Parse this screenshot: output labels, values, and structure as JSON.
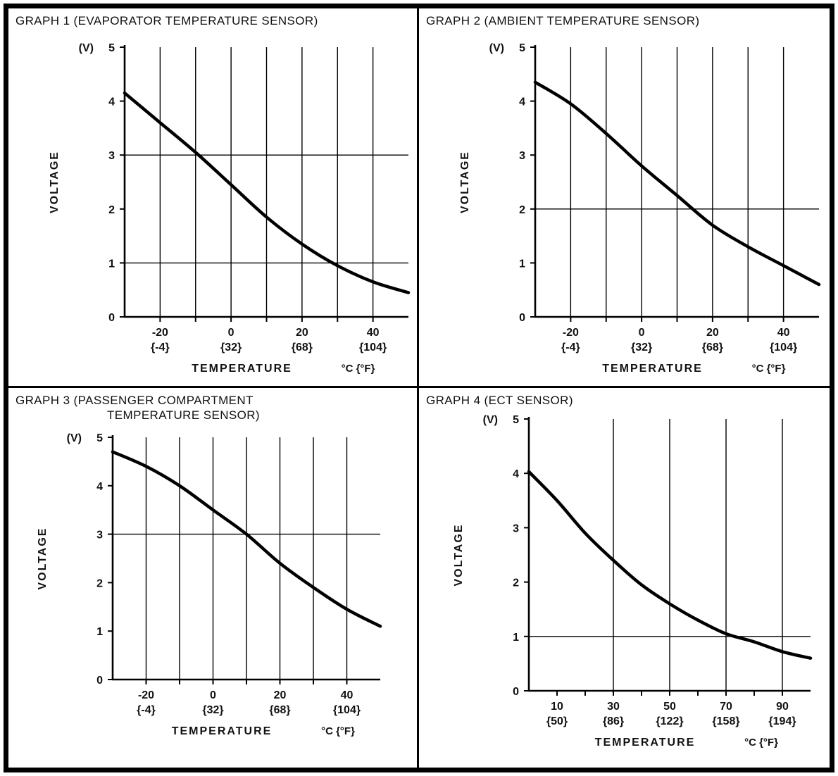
{
  "page": {
    "background": "#ffffff",
    "border_color": "#000000"
  },
  "chart_data": [
    {
      "type": "line",
      "title": "GRAPH 1 (EVAPORATOR TEMPERATURE SENSOR)",
      "title_line2": "",
      "ylabel": "VOLTAGE",
      "y_unit_label": "(V)",
      "xlabel": "TEMPERATURE",
      "x_unit_label": "°C {°F}",
      "line_color": "#000000",
      "xlim": [
        -30,
        50
      ],
      "ylim": [
        0,
        5
      ],
      "y_ticks": [
        0,
        1,
        2,
        3,
        4,
        5
      ],
      "x_ticks": [
        {
          "value": -20,
          "c": "-20",
          "f": "{-4}"
        },
        {
          "value": 0,
          "c": "0",
          "f": "{32}"
        },
        {
          "value": 20,
          "c": "20",
          "f": "{68}"
        },
        {
          "value": 40,
          "c": "40",
          "f": "{104}"
        }
      ],
      "tick_x": [
        -20,
        -10,
        0,
        10,
        20,
        30,
        40
      ],
      "grid_x": [
        -20,
        -10,
        0,
        10,
        20,
        30,
        40
      ],
      "grid_y": [
        1,
        3
      ],
      "points": {
        "x": [
          -30,
          -20,
          -10,
          0,
          10,
          20,
          30,
          40,
          50
        ],
        "y": [
          4.15,
          3.6,
          3.05,
          2.45,
          1.85,
          1.35,
          0.95,
          0.65,
          0.45
        ]
      }
    },
    {
      "type": "line",
      "title": "GRAPH 2 (AMBIENT TEMPERATURE SENSOR)",
      "title_line2": "",
      "ylabel": "VOLTAGE",
      "y_unit_label": "(V)",
      "xlabel": "TEMPERATURE",
      "x_unit_label": "°C {°F}",
      "line_color": "#000000",
      "xlim": [
        -30,
        50
      ],
      "ylim": [
        0,
        5
      ],
      "y_ticks": [
        0,
        1,
        2,
        3,
        4,
        5
      ],
      "x_ticks": [
        {
          "value": -20,
          "c": "-20",
          "f": "{-4}"
        },
        {
          "value": 0,
          "c": "0",
          "f": "{32}"
        },
        {
          "value": 20,
          "c": "20",
          "f": "{68}"
        },
        {
          "value": 40,
          "c": "40",
          "f": "{104}"
        }
      ],
      "tick_x": [
        -20,
        -10,
        0,
        10,
        20,
        30,
        40
      ],
      "grid_x": [
        -20,
        -10,
        0,
        10,
        20,
        30,
        40
      ],
      "grid_y": [
        2
      ],
      "points": {
        "x": [
          -30,
          -20,
          -10,
          0,
          10,
          20,
          30,
          40,
          50
        ],
        "y": [
          4.35,
          3.95,
          3.4,
          2.8,
          2.25,
          1.7,
          1.3,
          0.95,
          0.6
        ]
      }
    },
    {
      "type": "line",
      "title": "GRAPH 3 (PASSENGER COMPARTMENT",
      "title_line2": "TEMPERATURE SENSOR)",
      "ylabel": "VOLTAGE",
      "y_unit_label": "(V)",
      "xlabel": "TEMPERATURE",
      "x_unit_label": "°C {°F}",
      "line_color": "#000000",
      "xlim": [
        -30,
        50
      ],
      "ylim": [
        0,
        5
      ],
      "y_ticks": [
        0,
        1,
        2,
        3,
        4,
        5
      ],
      "x_ticks": [
        {
          "value": -20,
          "c": "-20",
          "f": "{-4}"
        },
        {
          "value": 0,
          "c": "0",
          "f": "{32}"
        },
        {
          "value": 20,
          "c": "20",
          "f": "{68}"
        },
        {
          "value": 40,
          "c": "40",
          "f": "{104}"
        }
      ],
      "tick_x": [
        -20,
        -10,
        0,
        10,
        20,
        30,
        40
      ],
      "grid_x": [
        -20,
        -10,
        0,
        10,
        20,
        30,
        40
      ],
      "grid_y": [
        3
      ],
      "points": {
        "x": [
          -30,
          -20,
          -10,
          0,
          10,
          20,
          30,
          40,
          50
        ],
        "y": [
          4.7,
          4.4,
          4.0,
          3.5,
          3.0,
          2.4,
          1.9,
          1.45,
          1.1
        ]
      }
    },
    {
      "type": "line",
      "title": "GRAPH 4 (ECT SENSOR)",
      "title_line2": "",
      "ylabel": "VOLTAGE",
      "y_unit_label": "(V)",
      "xlabel": "TEMPERATURE",
      "x_unit_label": "°C {°F}",
      "line_color": "#000000",
      "xlim": [
        0,
        100
      ],
      "ylim": [
        0,
        5
      ],
      "y_ticks": [
        0,
        1,
        2,
        3,
        4,
        5
      ],
      "x_ticks": [
        {
          "value": 10,
          "c": "10",
          "f": "{50}"
        },
        {
          "value": 30,
          "c": "30",
          "f": "{86}"
        },
        {
          "value": 50,
          "c": "50",
          "f": "{122}"
        },
        {
          "value": 70,
          "c": "70",
          "f": "{158}"
        },
        {
          "value": 90,
          "c": "90",
          "f": "{194}"
        }
      ],
      "tick_x": [
        10,
        20,
        30,
        40,
        50,
        60,
        70,
        80,
        90
      ],
      "grid_x": [
        30,
        50,
        70,
        90
      ],
      "grid_y": [
        1
      ],
      "points": {
        "x": [
          0,
          10,
          20,
          30,
          40,
          50,
          60,
          70,
          80,
          90,
          100
        ],
        "y": [
          4.03,
          3.5,
          2.9,
          2.4,
          1.95,
          1.6,
          1.3,
          1.05,
          0.9,
          0.72,
          0.6
        ]
      }
    }
  ]
}
